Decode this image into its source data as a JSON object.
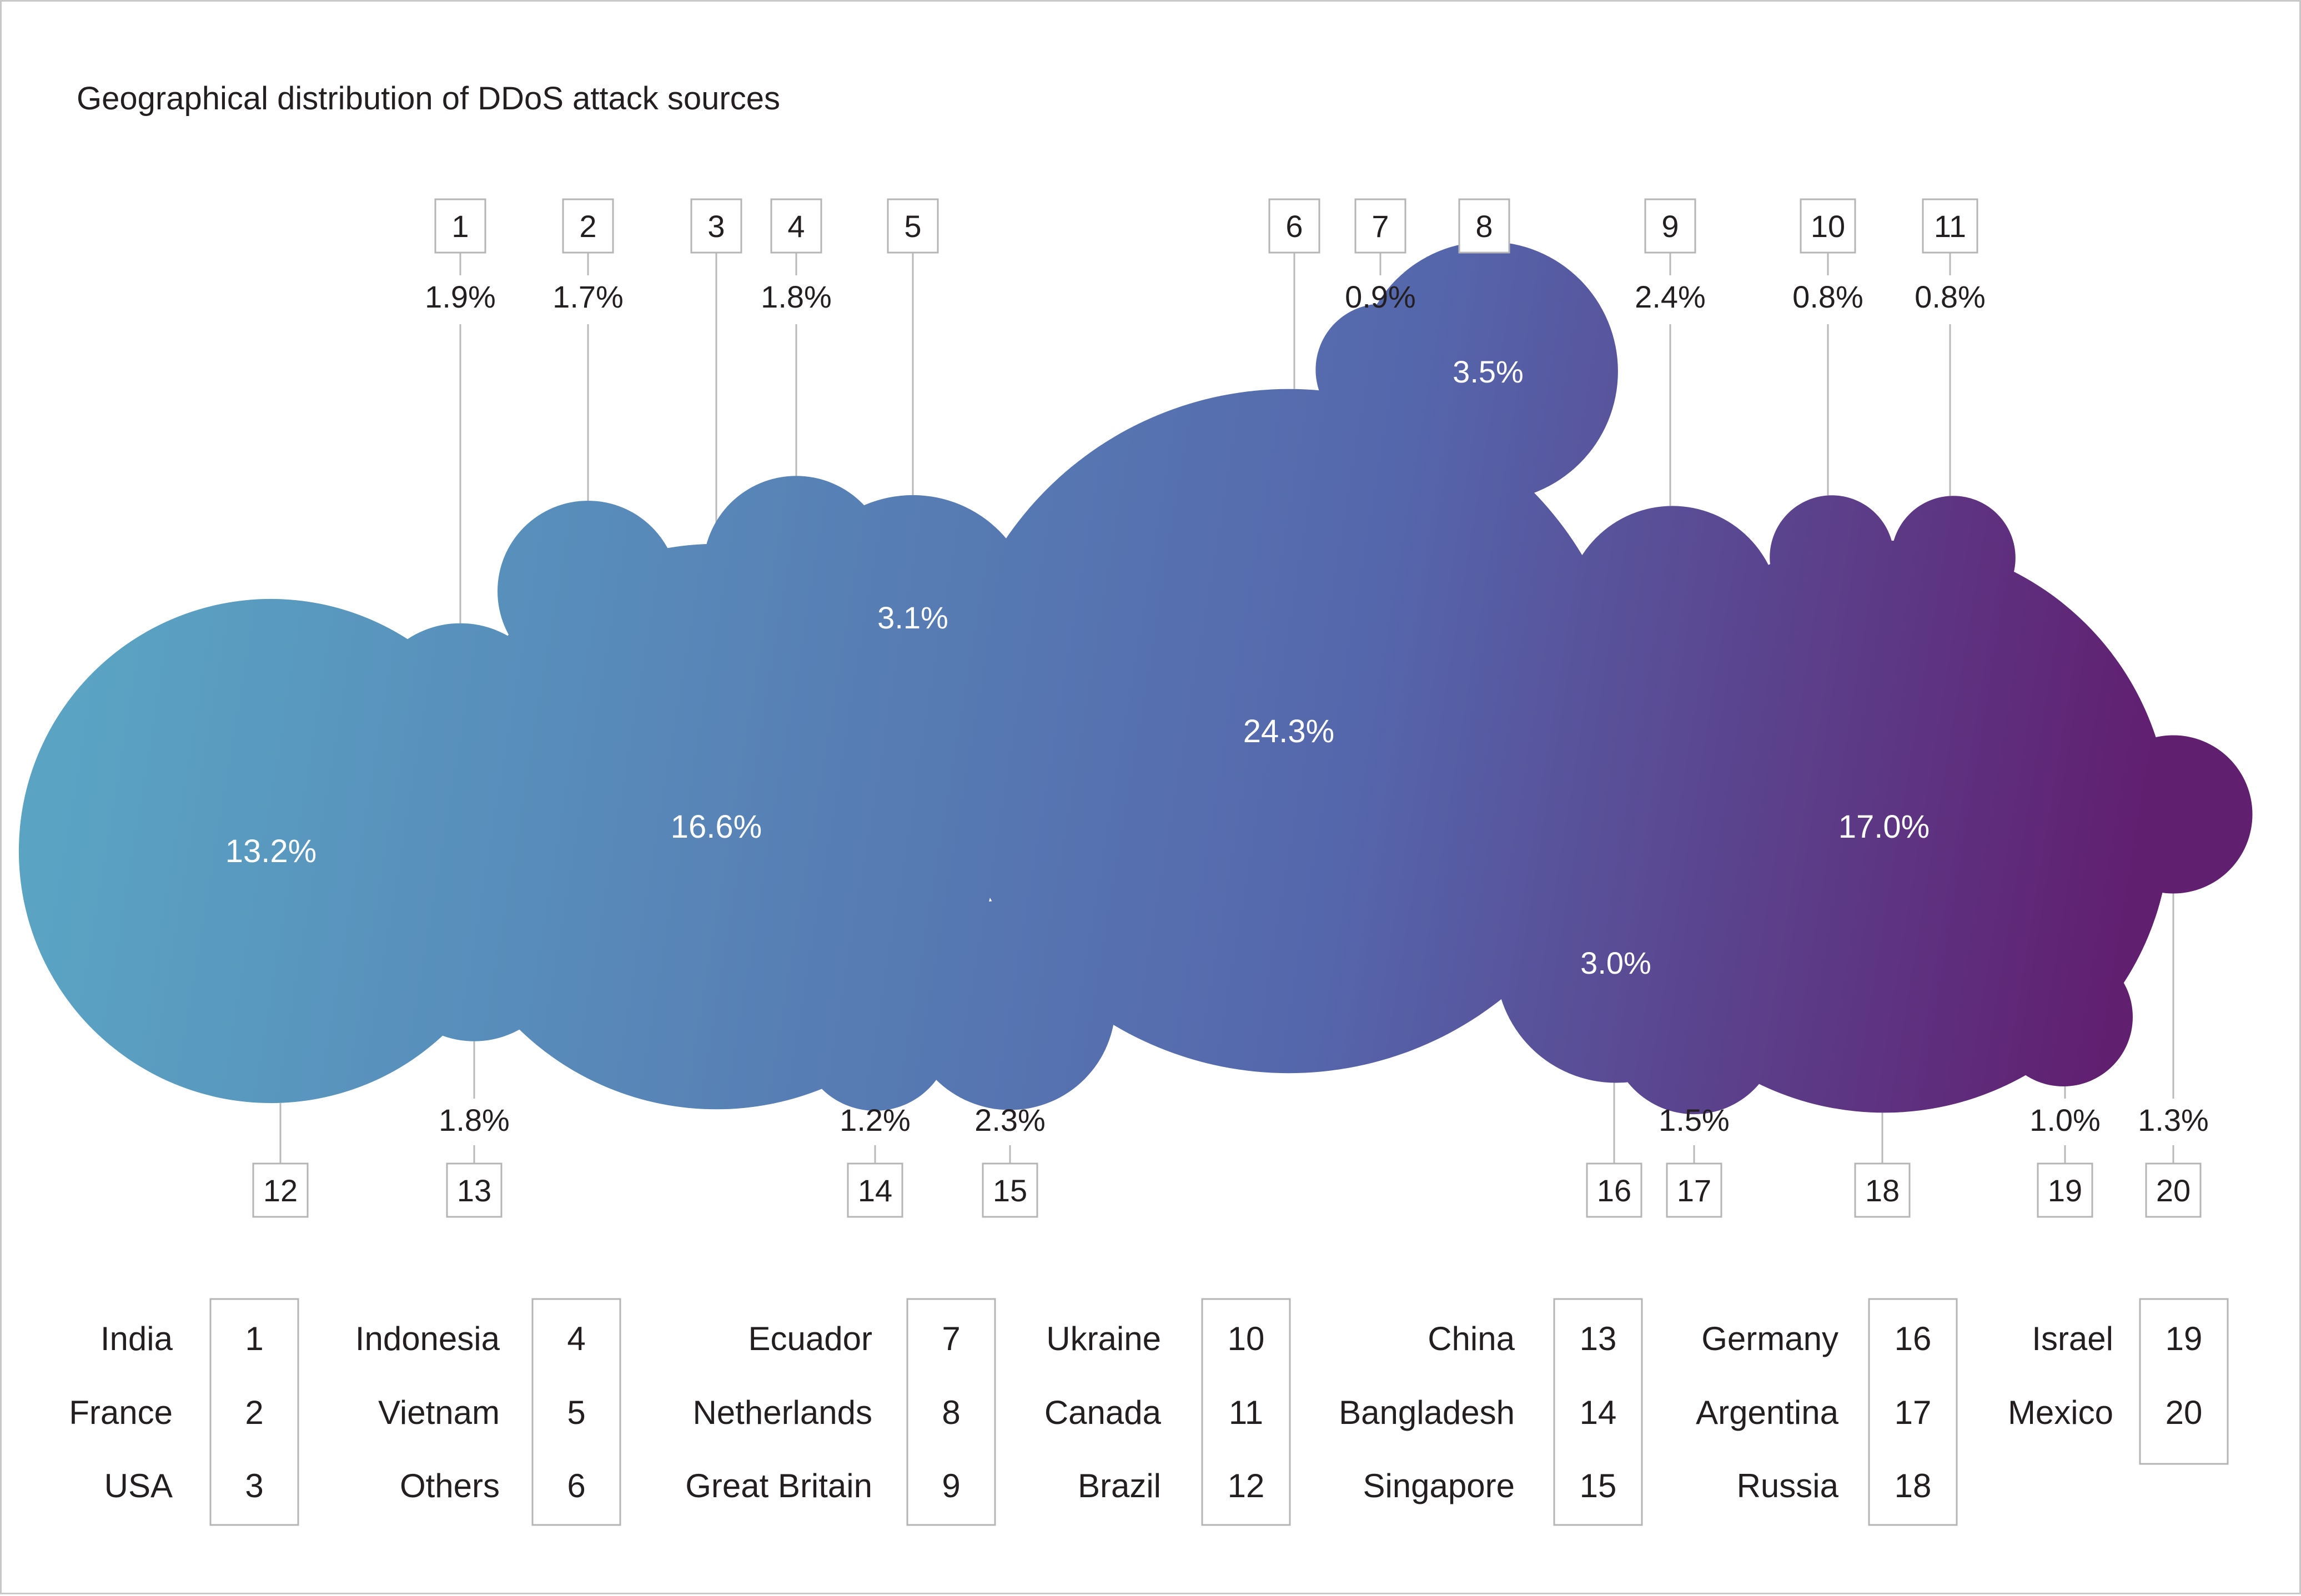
{
  "chart_data": {
    "type": "bubble",
    "title": "Geographical distribution of DDoS attack sources",
    "unit": "%",
    "colors": {
      "gradient_start": "#5aa3c3",
      "gradient_mid": "#5566ab",
      "gradient_end": "#611f70",
      "text_dark": "#231f20",
      "text_light": "#ffffff",
      "line": "#b9b9b9",
      "box_border": "#b5b5b5"
    },
    "series": [
      {
        "id": 1,
        "country": "India",
        "label": "1",
        "value": 1.9,
        "value_label": "1.9%"
      },
      {
        "id": 2,
        "country": "France",
        "label": "2",
        "value": 1.7,
        "value_label": "1.7%"
      },
      {
        "id": 3,
        "country": "USA",
        "label": "3",
        "value": 16.6,
        "value_label": "16.6%"
      },
      {
        "id": 4,
        "country": "Indonesia",
        "label": "4",
        "value": 1.8,
        "value_label": "1.8%"
      },
      {
        "id": 5,
        "country": "Vietnam",
        "label": "5",
        "value": 3.1,
        "value_label": "3.1%"
      },
      {
        "id": 6,
        "country": "Others",
        "label": "6",
        "value": 24.3,
        "value_label": "24.3%"
      },
      {
        "id": 7,
        "country": "Ecuador",
        "label": "7",
        "value": 0.9,
        "value_label": "0.9%"
      },
      {
        "id": 8,
        "country": "Netherlands",
        "label": "8",
        "value": 3.5,
        "value_label": "3.5%"
      },
      {
        "id": 9,
        "country": "Great Britain",
        "label": "9",
        "value": 2.4,
        "value_label": "2.4%"
      },
      {
        "id": 10,
        "country": "Ukraine",
        "label": "10",
        "value": 0.8,
        "value_label": "0.8%"
      },
      {
        "id": 11,
        "country": "Canada",
        "label": "11",
        "value": 0.8,
        "value_label": "0.8%"
      },
      {
        "id": 12,
        "country": "Brazil",
        "label": "12",
        "value": 13.2,
        "value_label": "13.2%"
      },
      {
        "id": 13,
        "country": "China",
        "label": "13",
        "value": 1.8,
        "value_label": "1.8%"
      },
      {
        "id": 14,
        "country": "Bangladesh",
        "label": "14",
        "value": 1.2,
        "value_label": "1.2%"
      },
      {
        "id": 15,
        "country": "Singapore",
        "label": "15",
        "value": 2.3,
        "value_label": "2.3%"
      },
      {
        "id": 16,
        "country": "Germany",
        "label": "16",
        "value": 3.0,
        "value_label": "3.0%"
      },
      {
        "id": 17,
        "country": "Argentina",
        "label": "17",
        "value": 1.5,
        "value_label": "1.5%"
      },
      {
        "id": 18,
        "country": "Russia",
        "label": "18",
        "value": 17.0,
        "value_label": "17.0%"
      },
      {
        "id": 19,
        "country": "Israel",
        "label": "19",
        "value": 1.0,
        "value_label": "1.0%"
      },
      {
        "id": 20,
        "country": "Mexico",
        "label": "20",
        "value": 1.3,
        "value_label": "1.3%"
      }
    ]
  }
}
